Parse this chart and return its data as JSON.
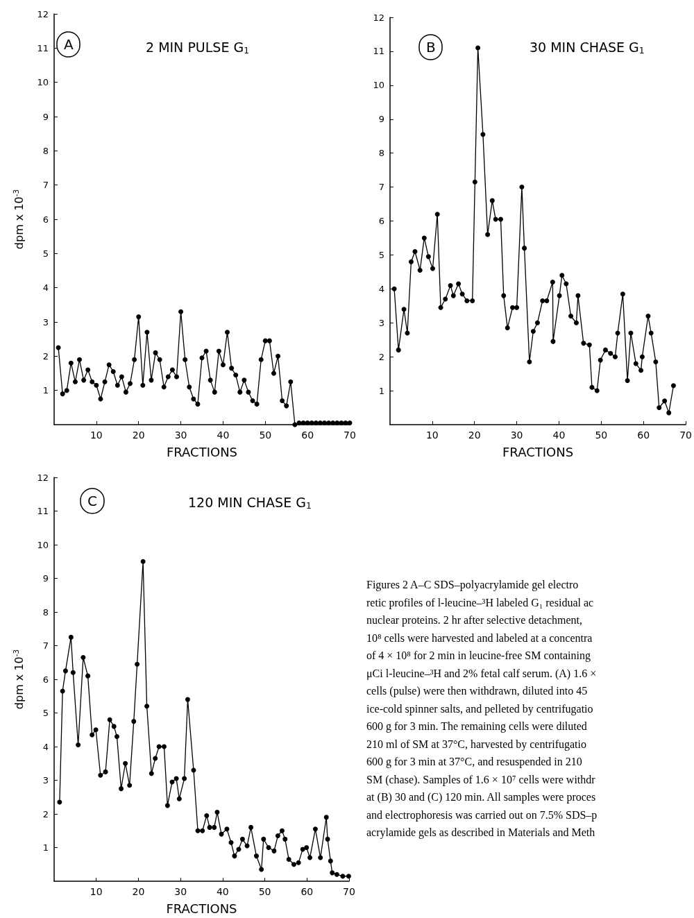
{
  "chart_data": [
    {
      "type": "line",
      "title": "2 MIN PULSE G$_{1}$",
      "annotations": [
        "A"
      ],
      "xlabel": "FRACTIONS",
      "ylabel": "dpm x 10$^{-3}$",
      "color": "#000000",
      "marker": "circle",
      "line_style": "solid",
      "grid": false,
      "xlim": [
        0,
        70
      ],
      "xticks": [
        10,
        20,
        30,
        40,
        50,
        60,
        70
      ],
      "ylim": [
        0,
        12
      ],
      "yticks": [
        1,
        2,
        3,
        4,
        5,
        6,
        7,
        8,
        9,
        10,
        11,
        12
      ],
      "x": [
        1,
        2,
        3,
        4,
        5,
        6,
        7,
        8,
        9,
        10,
        11,
        12,
        13,
        14,
        15,
        16,
        17,
        18,
        19,
        20,
        21,
        22,
        23,
        24,
        25,
        26,
        27,
        28,
        29,
        30,
        31,
        32,
        33,
        34,
        35,
        36,
        37,
        38,
        39,
        40,
        41,
        42,
        43,
        44,
        45,
        46,
        47,
        48,
        49,
        50,
        51,
        52,
        53,
        54,
        55,
        56,
        57,
        58,
        59,
        60,
        61,
        62,
        63,
        64,
        65,
        66,
        67,
        68,
        69,
        70
      ],
      "values": [
        2.25,
        0.9,
        1.0,
        1.8,
        1.25,
        1.9,
        1.3,
        1.6,
        1.25,
        1.15,
        0.75,
        1.25,
        1.75,
        1.55,
        1.15,
        1.4,
        0.95,
        1.2,
        1.9,
        3.15,
        1.15,
        2.7,
        1.3,
        2.1,
        1.9,
        1.1,
        1.4,
        1.6,
        1.4,
        3.3,
        1.9,
        1.1,
        0.75,
        0.6,
        1.95,
        2.15,
        1.3,
        0.95,
        2.15,
        1.75,
        2.7,
        1.65,
        1.45,
        0.95,
        1.3,
        0.95,
        0.7,
        0.6,
        1.9,
        2.45,
        2.45,
        1.5,
        2.0,
        0.7,
        0.55,
        1.25,
        0.0,
        0.05,
        0.05,
        0.05,
        0.05,
        0.05,
        0.05,
        0.05,
        0.05,
        0.05,
        0.05,
        0.05,
        0.05,
        0.05
      ]
    },
    {
      "type": "line",
      "title": "30 MIN CHASE G$_{1}$",
      "annotations": [
        "B"
      ],
      "xlabel": "FRACTIONS",
      "color": "#000000",
      "marker": "circle",
      "line_style": "solid",
      "grid": false,
      "xlim": [
        0,
        70
      ],
      "xticks": [
        10,
        20,
        30,
        40,
        50,
        60,
        70
      ],
      "ylim": [
        0,
        12
      ],
      "yticks": [
        1,
        2,
        3,
        4,
        5,
        6,
        7,
        8,
        9,
        10,
        11,
        12
      ],
      "x": [
        1.0,
        2.0,
        3.3,
        4.1,
        5.0,
        5.9,
        7.1,
        8.1,
        9.1,
        10.1,
        11.2,
        12.0,
        13.1,
        14.3,
        15.0,
        16.2,
        17.1,
        18.2,
        19.5,
        20.1,
        20.8,
        22.0,
        23.1,
        24.2,
        25.0,
        26.2,
        26.9,
        27.8,
        29.0,
        30.0,
        31.2,
        31.8,
        33.0,
        33.9,
        34.9,
        36.1,
        37.1,
        38.5,
        38.6,
        40.1,
        40.7,
        41.7,
        42.8,
        44.1,
        44.5,
        45.8,
        47.2,
        47.8,
        49.0,
        49.8,
        51.0,
        52.2,
        53.3,
        53.9,
        55.1,
        56.2,
        57.0,
        58.2,
        59.4,
        59.7,
        61.1,
        61.8,
        62.9,
        63.7,
        65.0,
        66.0,
        67.1
      ],
      "values": [
        4.0,
        2.2,
        3.4,
        2.7,
        4.8,
        5.1,
        4.55,
        5.5,
        4.95,
        4.6,
        6.2,
        3.45,
        3.7,
        4.1,
        3.8,
        4.15,
        3.85,
        3.65,
        3.65,
        7.15,
        11.1,
        8.55,
        5.6,
        6.6,
        6.05,
        6.05,
        3.8,
        2.85,
        3.45,
        3.45,
        7.0,
        5.2,
        1.85,
        2.75,
        3.0,
        3.65,
        3.65,
        4.2,
        2.45,
        3.8,
        4.4,
        4.15,
        3.2,
        3.0,
        3.8,
        2.4,
        2.35,
        1.1,
        1.0,
        1.9,
        2.2,
        2.1,
        2.0,
        2.7,
        3.85,
        1.3,
        2.7,
        1.8,
        1.6,
        2.0,
        3.2,
        2.7,
        1.85,
        0.5,
        0.7,
        0.35,
        1.15
      ]
    },
    {
      "type": "line",
      "title": "120 MIN CHASE G$_{1}$",
      "annotations": [
        "C",
        "Figures 2 A–C  SDS–polyacrylamide gel electro\nretic profiles of l-leucine–³H labeled G₁ residual ac\nnuclear proteins. 2 hr after selective detachment,\n10⁸ cells were harvested and labeled at a concentra\nof 4 × 10⁸ for 2 min in leucine-free SM containing\nμCi l-leucine–³H and 2% fetal calf serum. (A) 1.6 ×\ncells (pulse) were then withdrawn, diluted into 45\nice-cold spinner salts, and pelleted by centrifugatio\n600 g for 3 min. The remaining cells were diluted\n210 ml of SM at 37°C, harvested by centrifugatio\n600 g for 3 min at 37°C, and resuspended in 210\nSM (chase). Samples of 1.6 × 10⁷ cells were withdr\nat (B) 30 and (C) 120 min. All samples were proces\nand electrophoresis was carried out on 7.5% SDS–p\nacrylamide gels as described in Materials and Meth"
      ],
      "xlabel": "FRACTIONS",
      "ylabel": "dpm x 10$^{-3}$",
      "color": "#000000",
      "marker": "circle",
      "line_style": "solid",
      "grid": false,
      "xlim": [
        0,
        70
      ],
      "xticks": [
        10,
        20,
        30,
        40,
        50,
        60,
        70
      ],
      "ylim": [
        0,
        12
      ],
      "yticks": [
        1,
        2,
        3,
        4,
        5,
        6,
        7,
        8,
        9,
        10,
        11,
        12
      ],
      "x": [
        1.3,
        2.0,
        2.7,
        4.0,
        4.5,
        5.7,
        6.9,
        8.0,
        9.0,
        9.9,
        11.0,
        12.2,
        13.2,
        14.2,
        14.9,
        15.9,
        16.9,
        17.9,
        18.9,
        19.7,
        21.1,
        22.0,
        23.1,
        24.0,
        24.9,
        26.1,
        26.9,
        28.0,
        29.0,
        29.7,
        30.9,
        31.7,
        33.1,
        34.1,
        35.2,
        36.2,
        36.9,
        38.0,
        38.7,
        39.7,
        41.0,
        42.0,
        42.8,
        43.8,
        44.7,
        45.8,
        46.7,
        48.0,
        49.2,
        49.7,
        50.9,
        52.2,
        53.1,
        54.1,
        54.8,
        55.7,
        56.9,
        58.0,
        59.0,
        59.9,
        60.7,
        62.0,
        63.2,
        64.6,
        64.9,
        65.6,
        66.0,
        67.1,
        68.5,
        69.9
      ],
      "values": [
        2.35,
        5.65,
        6.25,
        7.25,
        6.2,
        4.05,
        6.65,
        6.1,
        4.35,
        4.5,
        3.15,
        3.25,
        4.8,
        4.6,
        4.3,
        2.75,
        3.5,
        2.85,
        4.75,
        6.45,
        9.5,
        5.2,
        3.2,
        3.65,
        4.0,
        4.0,
        2.25,
        2.95,
        3.05,
        2.45,
        3.05,
        5.4,
        3.3,
        1.5,
        1.5,
        1.95,
        1.6,
        1.6,
        2.05,
        1.4,
        1.55,
        1.15,
        0.75,
        0.95,
        1.25,
        1.05,
        1.6,
        0.75,
        0.35,
        1.25,
        1.0,
        0.9,
        1.35,
        1.5,
        1.25,
        0.65,
        0.5,
        0.55,
        0.95,
        1.0,
        0.7,
        1.55,
        0.7,
        1.9,
        1.25,
        0.6,
        0.25,
        0.2,
        0.15,
        0.15
      ]
    }
  ]
}
